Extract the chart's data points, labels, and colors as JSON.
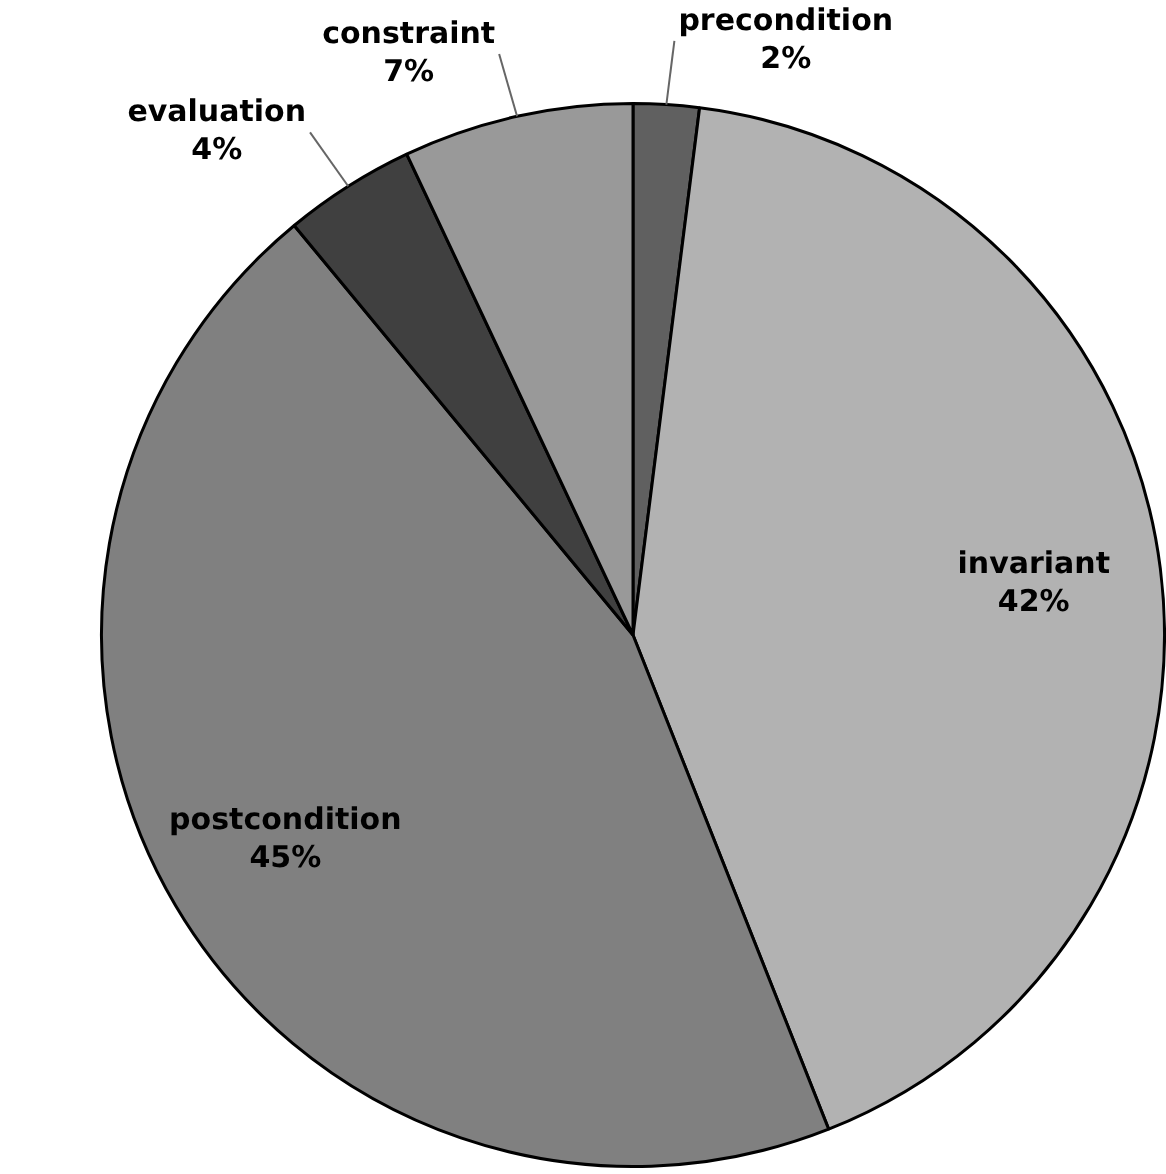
{
  "chart_data": {
    "type": "pie",
    "categories": [
      "precondition",
      "invariant",
      "postcondition",
      "evaluation",
      "constraint"
    ],
    "values": [
      2,
      42,
      45,
      4,
      7
    ],
    "value_labels": [
      "2%",
      "42%",
      "45%",
      "4%",
      "7%"
    ],
    "colors": [
      "#606060",
      "#b2b2b2",
      "#808080",
      "#404040",
      "#999999"
    ],
    "legend": false
  }
}
